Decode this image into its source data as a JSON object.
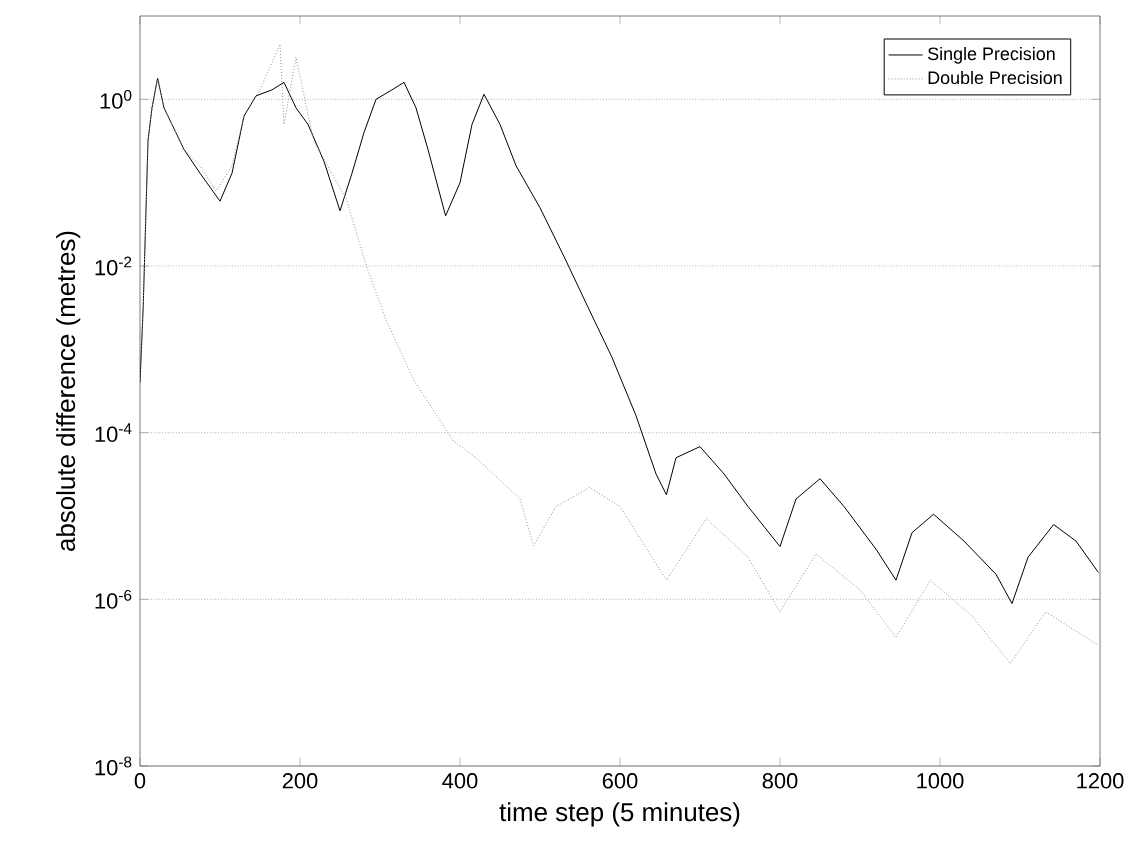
{
  "chart_data": {
    "type": "line",
    "xlabel": "time step (5 minutes)",
    "ylabel": "absolute difference (metres)",
    "log": "y",
    "grid": "y",
    "legend": "top right",
    "xlim": [
      0,
      1200
    ],
    "xticks": [
      0,
      200,
      400,
      600,
      800,
      1000,
      1200
    ],
    "ylim": [
      1e-08,
      10
    ],
    "yticks": [
      {
        "value": 1e-08,
        "label": "10$^{-8}$"
      },
      {
        "value": 1e-06,
        "label": "10$^{-6}$"
      },
      {
        "value": 0.0001,
        "label": "10$^{-4}$"
      },
      {
        "value": 0.01,
        "label": "10$^{-2}$"
      },
      {
        "value": 1,
        "label": "10$^{0}$"
      }
    ],
    "series": [
      {
        "name": "Single Precision",
        "color": "#000000",
        "line_style": "solid",
        "x": [
          0,
          4,
          10,
          15,
          22,
          30,
          40,
          55,
          75,
          100,
          115,
          130,
          145,
          165,
          180,
          195,
          210,
          230,
          250,
          265,
          280,
          295,
          315,
          330,
          345,
          360,
          382,
          400,
          415,
          430,
          450,
          470,
          500,
          530,
          560,
          590,
          620,
          645,
          658,
          670,
          700,
          730,
          760,
          800,
          820,
          850,
          880,
          920,
          945,
          965,
          992,
          1030,
          1070,
          1090,
          1110,
          1142,
          1170,
          1198
        ],
        "values": [
          0.0004,
          0.0032,
          0.32,
          0.79,
          1.8,
          0.79,
          0.5,
          0.25,
          0.13,
          0.06,
          0.13,
          0.63,
          1.1,
          1.3,
          1.6,
          0.79,
          0.5,
          0.18,
          0.046,
          0.13,
          0.4,
          1.0,
          1.3,
          1.6,
          0.79,
          0.25,
          0.04,
          0.1,
          0.5,
          1.15,
          0.5,
          0.16,
          0.05,
          0.013,
          0.0032,
          0.0008,
          0.00016,
          3.2e-05,
          1.8e-05,
          5e-05,
          6.8e-05,
          3.2e-05,
          1.3e-05,
          4.3e-06,
          1.6e-05,
          2.8e-05,
          1.3e-05,
          4e-06,
          1.7e-06,
          6.3e-06,
          1.05e-05,
          5e-06,
          2e-06,
          8.9e-07,
          3.2e-06,
          7.9e-06,
          5e-06,
          2.1e-06
        ]
      },
      {
        "name": "Double Precision",
        "color": "#909090",
        "line_style": "dotted",
        "x": [
          0,
          4,
          10,
          15,
          22,
          30,
          40,
          55,
          75,
          95,
          115,
          130,
          150,
          175,
          180,
          195,
          217,
          258,
          283,
          308,
          342,
          392,
          420,
          475,
          492,
          520,
          562,
          600,
          658,
          708,
          760,
          800,
          845,
          900,
          945,
          988,
          1040,
          1088,
          1132,
          1198
        ],
        "values": [
          0.0004,
          0.0032,
          0.32,
          0.79,
          1.8,
          0.79,
          0.5,
          0.25,
          0.16,
          0.079,
          0.16,
          0.63,
          1.3,
          4.6,
          0.5,
          3.2,
          0.32,
          0.063,
          0.01,
          0.0022,
          0.00043,
          7.9e-05,
          5e-05,
          1.6e-05,
          4.4e-06,
          1.3e-05,
          2.2e-05,
          1.3e-05,
          1.7e-06,
          9.3e-06,
          3.2e-06,
          7.1e-07,
          3.5e-06,
          1.3e-06,
          3.5e-07,
          1.7e-06,
          6.3e-07,
          1.7e-07,
          7.1e-07,
          2.8e-07
        ]
      }
    ]
  }
}
